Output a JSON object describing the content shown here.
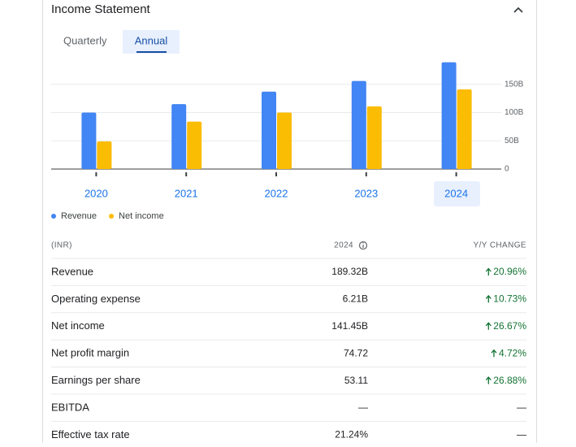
{
  "header": {
    "title": "Income Statement"
  },
  "tabs": [
    "Quarterly",
    "Annual"
  ],
  "chart_data": {
    "type": "bar",
    "categories": [
      "2020",
      "2021",
      "2022",
      "2023",
      "2024"
    ],
    "series": [
      {
        "name": "Revenue",
        "color": "#4285f4",
        "values": [
          100,
          115,
          137,
          156,
          189
        ]
      },
      {
        "name": "Net income",
        "color": "#fbbc04",
        "values": [
          49,
          84,
          100,
          111,
          141
        ]
      }
    ],
    "ylim": [
      0,
      200
    ],
    "yticks": [
      0,
      {
        "value": 50,
        "label": "50B"
      },
      {
        "value": 100,
        "label": "100B"
      },
      {
        "value": 150,
        "label": "150B"
      }
    ],
    "grid": true,
    "legend": "bottom-left"
  },
  "table": {
    "header": [
      "(INR)",
      "2024",
      "Y/Y CHANGE"
    ],
    "rows": [
      [
        "Revenue",
        "189.32B",
        "20.96%"
      ],
      [
        "Operating expense",
        "6.21B",
        "10.73%"
      ],
      [
        "Net income",
        "141.45B",
        "26.67%"
      ],
      [
        "Net profit margin",
        "74.72",
        "4.72%"
      ],
      [
        "Earnings per share",
        "53.11",
        "26.88%"
      ],
      [
        "EBITDA",
        "—",
        "—"
      ],
      [
        "Effective tax rate",
        "21.24%",
        "—"
      ]
    ]
  }
}
